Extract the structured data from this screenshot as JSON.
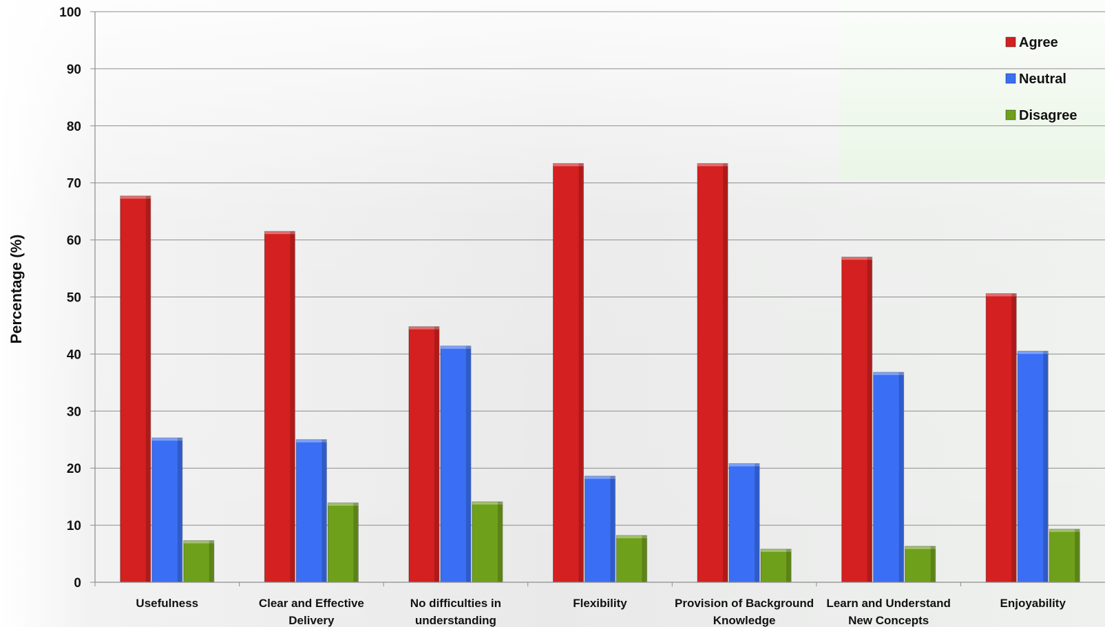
{
  "chart_data": {
    "type": "bar",
    "title": "",
    "xlabel": "",
    "ylabel": "Percentage (%)",
    "ylim": [
      0,
      100
    ],
    "yticks": [
      0,
      10,
      20,
      30,
      40,
      50,
      60,
      70,
      80,
      90,
      100
    ],
    "grid": true,
    "legend_position": "top-right",
    "categories": [
      [
        "Usefulness"
      ],
      [
        "Clear and Effective",
        "Delivery"
      ],
      [
        "No difficulties in",
        "understanding"
      ],
      [
        "Flexibility"
      ],
      [
        "Provision of Background",
        "Knowledge"
      ],
      [
        "Learn and Understand",
        "New Concepts"
      ],
      [
        "Enjoyability"
      ]
    ],
    "series": [
      {
        "name": "Agree",
        "color": "#d42020",
        "values": [
          67.7,
          61.5,
          44.8,
          73.4,
          73.4,
          57.0,
          50.6
        ]
      },
      {
        "name": "Neutral",
        "color": "#3a6ff5",
        "values": [
          25.3,
          25.0,
          41.4,
          18.6,
          20.8,
          36.8,
          40.5
        ]
      },
      {
        "name": "Disagree",
        "color": "#6fa01c",
        "values": [
          7.3,
          13.9,
          14.1,
          8.2,
          5.8,
          6.3,
          9.3
        ]
      }
    ]
  }
}
